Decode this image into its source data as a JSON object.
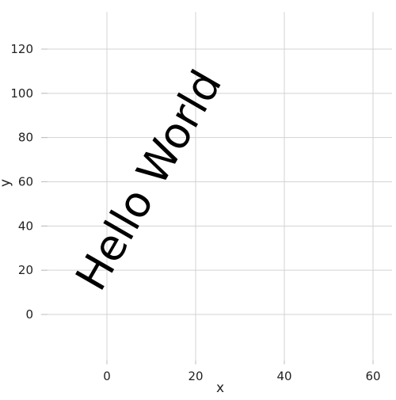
{
  "chart_data": {
    "type": "scatter",
    "title": "",
    "xlabel": "x",
    "ylabel": "y",
    "xlim": [
      -15,
      65
    ],
    "ylim": [
      -20,
      137
    ],
    "x_ticks": [
      0,
      20,
      40,
      60
    ],
    "y_ticks": [
      0,
      20,
      40,
      60,
      80,
      100,
      120
    ],
    "x_tick_labels": [
      "0",
      "20",
      "40",
      "60"
    ],
    "y_tick_labels": [
      "0",
      "20",
      "40",
      "60",
      "80",
      "100",
      "120"
    ],
    "grid": true,
    "legend": "none",
    "series": [],
    "annotations": [
      {
        "text": "Hello World",
        "x": 10,
        "y": 60,
        "rotation": 60,
        "color": "#000000"
      }
    ]
  },
  "colors": {
    "background": "#ffffff",
    "grid": "#d3d3d3",
    "text": "#222222"
  }
}
